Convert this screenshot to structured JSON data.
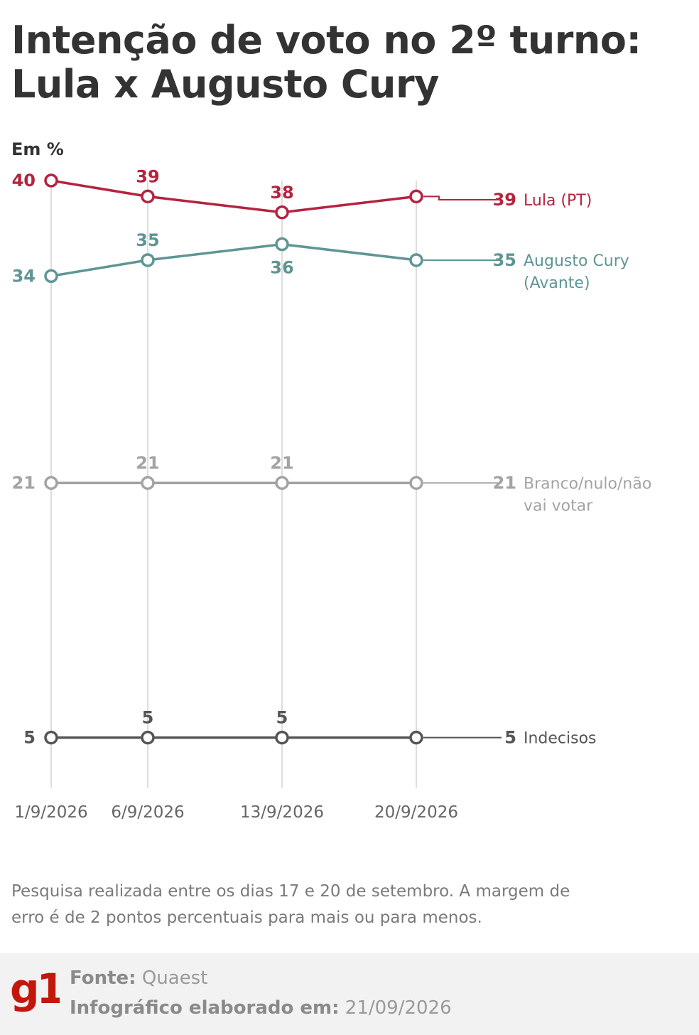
{
  "title": "Intenção de voto no 2º turno: Lula x Augusto Cury",
  "unit_label": "Em %",
  "chart_data": {
    "type": "line",
    "x": [
      "1/9/2026",
      "6/9/2026",
      "13/9/2026",
      "20/9/2026"
    ],
    "ylim": [
      0,
      40
    ],
    "grid": "vertical",
    "series": [
      {
        "name": "Lula (PT)",
        "label_lines": [
          "Lula (PT)"
        ],
        "values": [
          40,
          39,
          38,
          39
        ],
        "color": "#b5233f",
        "end_value": "39"
      },
      {
        "name": "Augusto Cury (Avante)",
        "label_lines": [
          "Augusto Cury",
          "(Avante)"
        ],
        "values": [
          34,
          35,
          36,
          35
        ],
        "color": "#5f9595",
        "end_value": "35"
      },
      {
        "name": "Branco/nulo/não vai votar",
        "label_lines": [
          "Branco/nulo/não",
          "vai votar"
        ],
        "values": [
          21,
          21,
          21,
          21
        ],
        "color": "#a3a3a3",
        "end_value": "21"
      },
      {
        "name": "Indecisos",
        "label_lines": [
          "Indecisos"
        ],
        "values": [
          5,
          5,
          5,
          5
        ],
        "color": "#555555",
        "end_value": "5"
      }
    ]
  },
  "note": "Pesquisa realizada entre os dias 17 e 20 de setembro. A margem de erro é de 2 pontos percentuais para mais ou para menos.",
  "footer": {
    "logo_text": "g1",
    "logo_color": "#c4170c",
    "source_label": "Fonte:",
    "source_value": "Quaest",
    "date_label": "Infográfico elaborado em:",
    "date_value": "21/09/2026"
  }
}
